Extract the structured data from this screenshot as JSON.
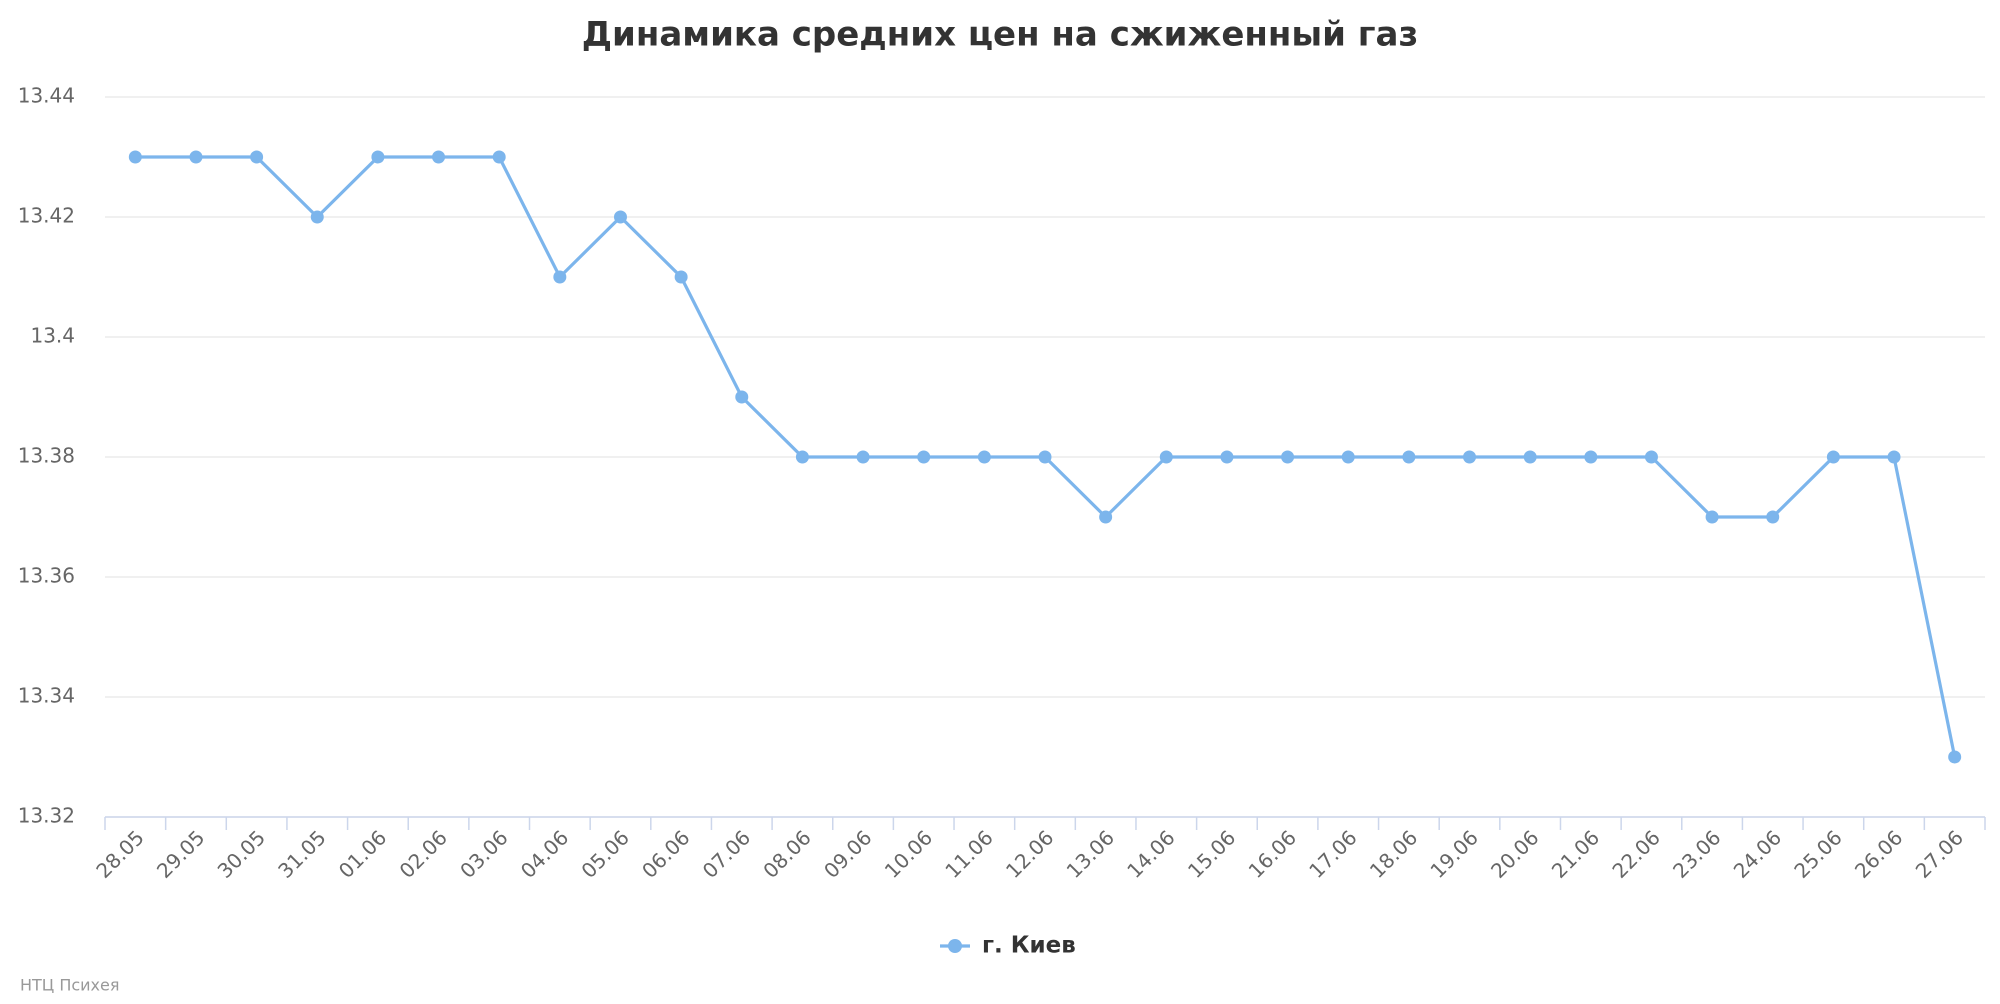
{
  "chart_data": {
    "type": "line",
    "title": "Динамика средних цен на сжиженный газ",
    "categories": [
      "28.05",
      "29.05",
      "30.05",
      "31.05",
      "01.06",
      "02.06",
      "03.06",
      "04.06",
      "05.06",
      "06.06",
      "07.06",
      "08.06",
      "09.06",
      "10.06",
      "11.06",
      "12.06",
      "13.06",
      "14.06",
      "15.06",
      "16.06",
      "17.06",
      "18.06",
      "19.06",
      "20.06",
      "21.06",
      "22.06",
      "23.06",
      "24.06",
      "25.06",
      "26.06",
      "27.06"
    ],
    "series": [
      {
        "name": "г. Киев",
        "color": "#7cb5ec",
        "values": [
          13.43,
          13.43,
          13.43,
          13.42,
          13.43,
          13.43,
          13.43,
          13.41,
          13.42,
          13.41,
          13.39,
          13.38,
          13.38,
          13.38,
          13.38,
          13.38,
          13.37,
          13.38,
          13.38,
          13.38,
          13.38,
          13.38,
          13.38,
          13.38,
          13.38,
          13.38,
          13.37,
          13.37,
          13.38,
          13.38,
          13.33
        ]
      }
    ],
    "ylim": [
      13.32,
      13.44
    ],
    "yticks": [
      13.32,
      13.34,
      13.36,
      13.38,
      13.4,
      13.42,
      13.44
    ],
    "grid": true,
    "legend": "bottom",
    "credits": "НТЦ Психея"
  }
}
